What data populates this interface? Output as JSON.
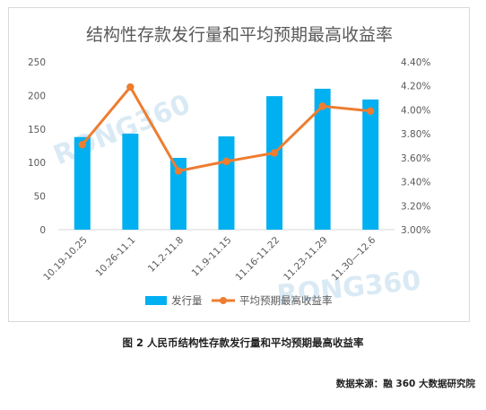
{
  "chart_data": {
    "type": "bar+line",
    "title": "结构性存款发行量和平均预期最高收益率",
    "categories": [
      "10.19-10.25",
      "10.26-11.1",
      "11.2-11.8",
      "11.9-11.15",
      "11.16-11.22",
      "11.23-11.29",
      "11.30—12.6"
    ],
    "series": [
      {
        "name": "发行量",
        "type": "bar",
        "axis": "left",
        "color": "#00b0f0",
        "values": [
          138,
          143,
          107,
          139,
          199,
          210,
          194
        ]
      },
      {
        "name": "平均预期最高收益率",
        "type": "line",
        "axis": "right",
        "color": "#ed7d31",
        "values": [
          3.71,
          4.19,
          3.49,
          3.57,
          3.64,
          4.03,
          3.99
        ]
      }
    ],
    "left_axis": {
      "ylim": [
        0,
        250
      ],
      "ticks": [
        "0",
        "50",
        "100",
        "150",
        "200",
        "250"
      ]
    },
    "right_axis": {
      "ylim": [
        3.0,
        4.4
      ],
      "ticks": [
        "3.00%",
        "3.20%",
        "3.40%",
        "3.60%",
        "3.80%",
        "4.00%",
        "4.20%",
        "4.40%"
      ]
    },
    "grid": false,
    "legend": "bottom"
  },
  "watermark": "RONG360",
  "caption": "图 2 人民币结构性存款发行量和平均预期最高收益率",
  "source": "数据来源：融 360 大数据研究院"
}
